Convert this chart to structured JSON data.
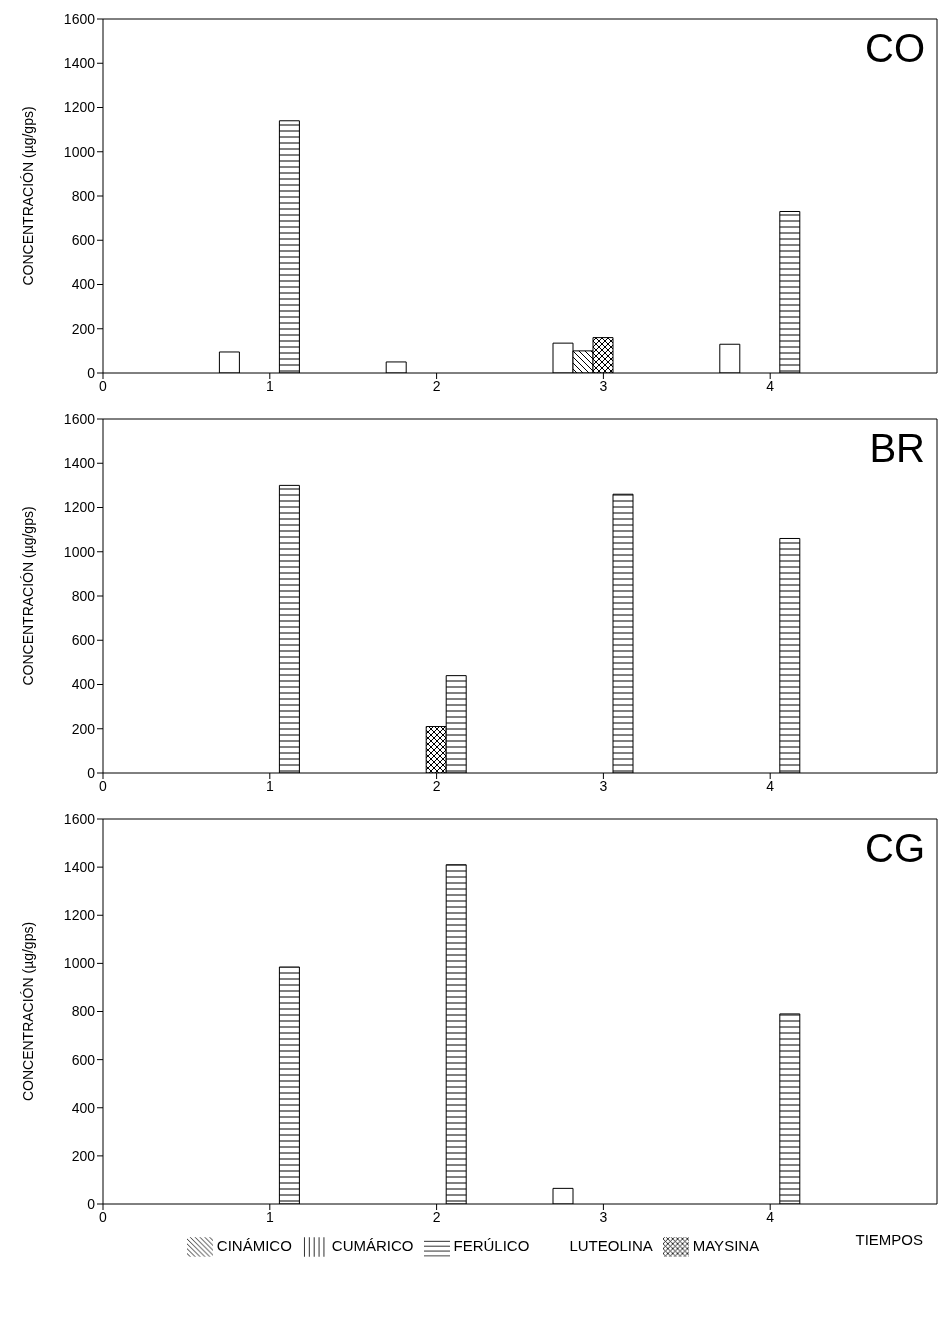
{
  "chart_data": [
    {
      "type": "bar",
      "title": "CO",
      "ylabel": "CONCENTRACIÓN (µg/gps)",
      "x": [
        1,
        2,
        3,
        4
      ],
      "xlim": [
        0,
        5
      ],
      "xticks": [
        0,
        1,
        2,
        3,
        4
      ],
      "ylim": [
        0,
        1600
      ],
      "yticks": [
        0,
        200,
        400,
        600,
        800,
        1000,
        1200,
        1400,
        1600
      ],
      "grid": false,
      "legend": false,
      "series": [
        {
          "color": "#000000",
          "values": [
            95,
            50,
            135,
            130
          ]
        },
        {
          "color": "#000000",
          "values": [
            null,
            null,
            100,
            null
          ]
        },
        {
          "color": "#000000",
          "values": [
            null,
            null,
            160,
            null
          ]
        },
        {
          "color": "#000000",
          "values": [
            1140,
            null,
            null,
            730
          ]
        },
        {
          "color": "#000000",
          "values": [
            null,
            null,
            null,
            null
          ]
        }
      ]
    },
    {
      "type": "bar",
      "title": "BR",
      "ylabel": "CONCENTRACIÓN (µg/gps)",
      "x": [
        1,
        2,
        3,
        4
      ],
      "xlim": [
        0,
        5
      ],
      "xticks": [
        0,
        1,
        2,
        3,
        4
      ],
      "ylim": [
        0,
        1600
      ],
      "yticks": [
        0,
        200,
        400,
        600,
        800,
        1000,
        1200,
        1400,
        1600
      ],
      "grid": false,
      "legend": false,
      "series": [
        {
          "color": "#000000",
          "values": [
            null,
            null,
            null,
            null
          ]
        },
        {
          "color": "#000000",
          "values": [
            null,
            null,
            null,
            null
          ]
        },
        {
          "color": "#000000",
          "values": [
            null,
            210,
            null,
            null
          ]
        },
        {
          "color": "#000000",
          "values": [
            1300,
            440,
            1260,
            1060
          ]
        },
        {
          "color": "#000000",
          "values": [
            null,
            null,
            null,
            null
          ]
        }
      ]
    },
    {
      "type": "bar",
      "title": "CG",
      "ylabel": "CONCENTRACIÓN (µg/gps)",
      "xlabel": "TIEMPOS",
      "x": [
        1,
        2,
        3,
        4
      ],
      "xlim": [
        0,
        5
      ],
      "xticks": [
        0,
        1,
        2,
        3,
        4
      ],
      "ylim": [
        0,
        1600
      ],
      "yticks": [
        0,
        200,
        400,
        600,
        800,
        1000,
        1200,
        1400,
        1600
      ],
      "grid": false,
      "legend": "bottom",
      "series": [
        {
          "name": "LUTEOLINA",
          "color": "#000000",
          "values": [
            null,
            null,
            65,
            null
          ]
        },
        {
          "name": "CINÁMICO",
          "color": "#000000",
          "values": [
            null,
            null,
            null,
            null
          ]
        },
        {
          "name": "MAYSINA",
          "color": "#000000",
          "values": [
            null,
            null,
            null,
            null
          ]
        },
        {
          "name": "FERÚLICO",
          "color": "#000000",
          "values": [
            985,
            1410,
            null,
            790
          ]
        },
        {
          "name": "CUMÁRICO",
          "color": "#000000",
          "values": [
            null,
            null,
            null,
            null
          ]
        }
      ]
    }
  ]
}
